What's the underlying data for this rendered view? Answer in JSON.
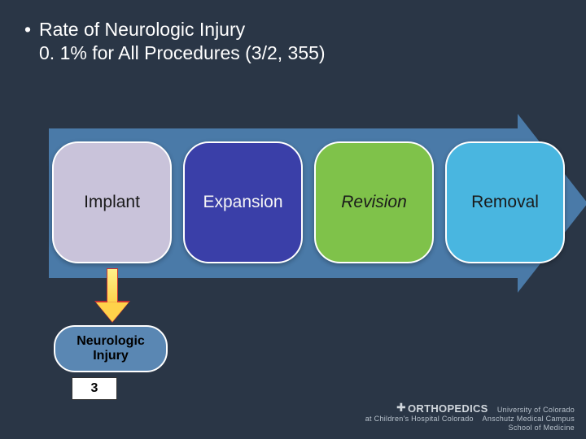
{
  "slide": {
    "background_color": "#2a3646",
    "text_color": "#ffffff",
    "bullet": {
      "line1": "Rate of Neurologic Injury",
      "line2": "0. 1% for All Procedures (3/2, 355)"
    }
  },
  "arrow": {
    "body_color": "#4a7aa8",
    "nodes": [
      {
        "label": "Implant",
        "bg": "#c9c3da",
        "text": "#1a1a1a",
        "italic": false
      },
      {
        "label": "Expansion",
        "bg": "#3a3fa8",
        "text": "#f5f5f5",
        "italic": false
      },
      {
        "label": "Revision",
        "bg": "#7fc24a",
        "text": "#1a1a1a",
        "italic": true
      },
      {
        "label": "Removal",
        "bg": "#49b6e0",
        "text": "#1a1a1a",
        "italic": false
      }
    ],
    "node_border_color": "#ffffff"
  },
  "callout": {
    "arrow_fill": "#ffd24a",
    "arrow_border": "#c83232",
    "box_bg": "#5a87b3",
    "box_label_line1": "Neurologic",
    "box_label_line2": "Injury",
    "count": "3"
  },
  "footer": {
    "brand": "ORTHOPEDICS",
    "sub1": "at Children's Hospital Colorado",
    "sub2_a": "University of Colorado",
    "sub2_b": "Anschutz Medical Campus",
    "sub2_c": "School of Medicine"
  }
}
